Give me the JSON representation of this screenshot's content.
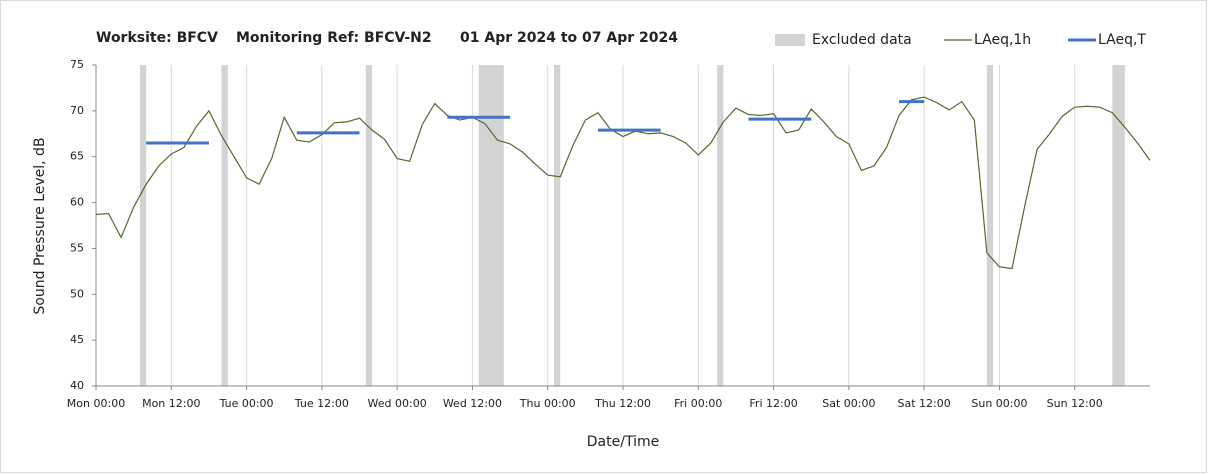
{
  "chart_data": {
    "type": "line",
    "title": [
      "Worksite: BFCV",
      "Monitoring Ref: BFCV-N2",
      "01 Apr 2024 to 07 Apr 2024"
    ],
    "xlabel": "Date/Time",
    "ylabel": "Sound Pressure Level, dB",
    "xlim": [
      0,
      168
    ],
    "ylim": [
      40,
      75
    ],
    "yticks": [
      40,
      45,
      50,
      55,
      60,
      65,
      70,
      75
    ],
    "xticks": [
      {
        "value": 0,
        "label": "Mon 00:00"
      },
      {
        "value": 12,
        "label": "Mon 12:00"
      },
      {
        "value": 24,
        "label": "Tue 00:00"
      },
      {
        "value": 36,
        "label": "Tue 12:00"
      },
      {
        "value": 48,
        "label": "Wed 00:00"
      },
      {
        "value": 60,
        "label": "Wed 12:00"
      },
      {
        "value": 72,
        "label": "Thu 00:00"
      },
      {
        "value": 84,
        "label": "Thu 12:00"
      },
      {
        "value": 96,
        "label": "Fri 00:00"
      },
      {
        "value": 108,
        "label": "Fri 12:00"
      },
      {
        "value": 120,
        "label": "Sat 00:00"
      },
      {
        "value": 132,
        "label": "Sat 12:00"
      },
      {
        "value": 144,
        "label": "Sun 00:00"
      },
      {
        "value": 156,
        "label": "Sun 12:00"
      }
    ],
    "grid": "x",
    "excluded": {
      "name": "Excluded data",
      "color": "#d3d3d3",
      "ranges": [
        [
          7,
          8
        ],
        [
          20,
          21
        ],
        [
          43,
          44
        ],
        [
          61,
          65
        ],
        [
          73,
          74
        ],
        [
          99,
          100
        ],
        [
          142,
          143
        ],
        [
          162,
          164
        ]
      ]
    },
    "series": [
      {
        "name": "LAeq,1h",
        "color": "#4f6b2f",
        "x": [
          0,
          2,
          4,
          6,
          8,
          10,
          12,
          14,
          16,
          18,
          20,
          22,
          24,
          26,
          28,
          30,
          32,
          34,
          36,
          38,
          40,
          42,
          44,
          46,
          48,
          50,
          52,
          54,
          56,
          58,
          60,
          62,
          64,
          66,
          68,
          70,
          72,
          74,
          76,
          78,
          80,
          82,
          84,
          86,
          88,
          90,
          92,
          94,
          96,
          98,
          100,
          102,
          104,
          106,
          108,
          110,
          112,
          114,
          116,
          118,
          120,
          122,
          124,
          126,
          128,
          130,
          132,
          134,
          136,
          138,
          140,
          142,
          144,
          146,
          148,
          150,
          152,
          154,
          156,
          158,
          160,
          162,
          164,
          166,
          168
        ],
        "values": [
          58.7,
          58.8,
          56.2,
          59.5,
          62,
          64,
          65.3,
          66,
          68.3,
          70,
          67.3,
          65,
          62.7,
          62,
          64.8,
          69.3,
          66.8,
          66.6,
          67.4,
          68.7,
          68.8,
          69.2,
          67.9,
          66.9,
          64.8,
          64.5,
          68.5,
          70.8,
          69.5,
          69,
          69.3,
          68.6,
          66.8,
          66.4,
          65.5,
          64.2,
          63,
          62.8,
          66.2,
          69,
          69.8,
          68,
          67.2,
          67.8,
          67.5,
          67.6,
          67.2,
          66.5,
          65.2,
          66.5,
          68.8,
          70.3,
          69.6,
          69.5,
          69.7,
          67.6,
          67.9,
          70.2,
          68.8,
          67.2,
          66.4,
          63.5,
          64,
          66,
          69.5,
          71.2,
          71.5,
          70.9,
          70.1,
          71,
          69,
          54.5,
          53,
          52.8,
          59.5,
          65.8,
          67.5,
          69.4,
          70.4,
          70.5,
          70.4,
          69.8,
          68.2,
          66.5,
          64.6
        ]
      },
      {
        "name": "LAeq,T",
        "color": "#4472c4",
        "segments": [
          {
            "x": [
              8,
              18
            ],
            "value": 66.5
          },
          {
            "x": [
              32,
              42
            ],
            "value": 67.6
          },
          {
            "x": [
              56,
              66
            ],
            "value": 69.3
          },
          {
            "x": [
              80,
              90
            ],
            "value": 67.9
          },
          {
            "x": [
              104,
              114
            ],
            "value": 69.1
          },
          {
            "x": [
              128,
              132
            ],
            "value": 71
          }
        ]
      }
    ]
  }
}
